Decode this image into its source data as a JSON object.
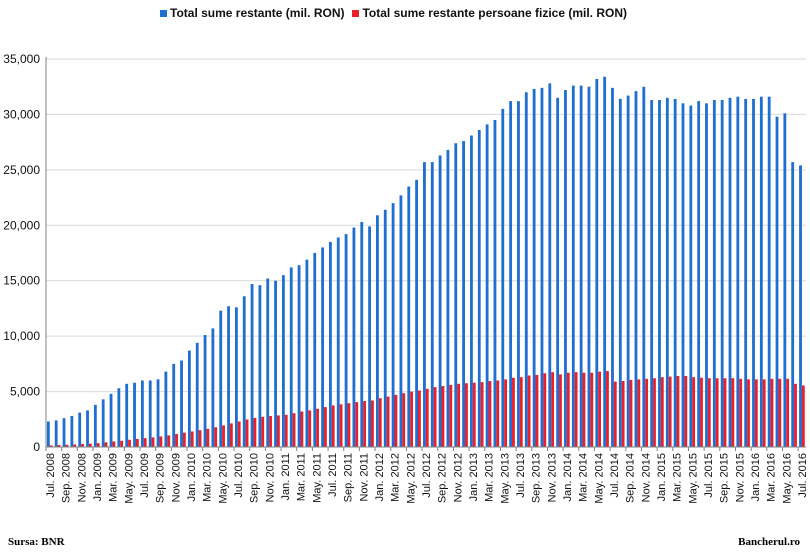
{
  "legend": {
    "series1": "Total sume restante (mil. RON)",
    "series2": "Total sume restante persoane fizice (mil. RON)"
  },
  "footer": {
    "source": "Sursa: BNR",
    "brand": "Bancherul.ro"
  },
  "colors": {
    "series1": "#1f6fd0",
    "series2": "#e8202a",
    "grid": "#d9d9d9",
    "axis": "#808080"
  },
  "chart_data": {
    "type": "bar",
    "ylim": [
      0,
      35000
    ],
    "yticks": [
      0,
      5000,
      10000,
      15000,
      20000,
      25000,
      30000,
      35000
    ],
    "ytick_labels": [
      "0",
      "5,000",
      "10,000",
      "15,000",
      "20,000",
      "25,000",
      "30,000",
      "35,000"
    ],
    "grid": true,
    "legend_position": "top",
    "categories": [
      "Jul. 2008",
      "Aug. 2008",
      "Sep. 2008",
      "Oct. 2008",
      "Nov. 2008",
      "Dec. 2008",
      "Jan. 2009",
      "Feb. 2009",
      "Mar. 2009",
      "Apr. 2009",
      "May. 2009",
      "Jun. 2009",
      "Jul. 2009",
      "Aug. 2009",
      "Sep. 2009",
      "Oct. 2009",
      "Nov. 2009",
      "Dec. 2009",
      "Jan. 2010",
      "Feb. 2010",
      "Mar. 2010",
      "Apr. 2010",
      "May. 2010",
      "Jun. 2010",
      "Jul. 2010",
      "Aug. 2010",
      "Sep. 2010",
      "Oct. 2010",
      "Nov. 2010",
      "Dec. 2010",
      "Jan. 2011",
      "Feb. 2011",
      "Mar. 2011",
      "Apr. 2011",
      "May. 2011",
      "Jun. 2011",
      "Jul. 2011",
      "Aug. 2011",
      "Sep. 2011",
      "Oct. 2011",
      "Nov. 2011",
      "Dec. 2011",
      "Jan. 2012",
      "Feb. 2012",
      "Mar. 2012",
      "Apr. 2012",
      "May. 2012",
      "Jun. 2012",
      "Jul. 2012",
      "Aug. 2012",
      "Sep. 2012",
      "Oct. 2012",
      "Nov. 2012",
      "Dec. 2012",
      "Jan. 2013",
      "Feb. 2013",
      "Mar. 2013",
      "Apr. 2013",
      "May. 2013",
      "Jun. 2013",
      "Jul. 2013",
      "Aug. 2013",
      "Sep. 2013",
      "Oct. 2013",
      "Nov. 2013",
      "Dec. 2013",
      "Jan. 2014",
      "Feb. 2014",
      "Mar. 2014",
      "Apr. 2014",
      "May. 2014",
      "Jun. 2014",
      "Jul. 2014",
      "Aug. 2014",
      "Sep. 2014",
      "Oct. 2014",
      "Nov. 2014",
      "Dec. 2014",
      "Jan. 2015",
      "Feb. 2015",
      "Mar. 2015",
      "Apr. 2015",
      "May. 2015",
      "Jun. 2015",
      "Jul. 2015",
      "Aug. 2015",
      "Sep. 2015",
      "Oct. 2015",
      "Nov. 2015",
      "Dec. 2015",
      "Jan. 2016",
      "Feb. 2016",
      "Mar. 2016",
      "Apr. 2016",
      "May. 2016",
      "Jun. 2016",
      "Jul. 2016"
    ],
    "xtick_labels": [
      "Jul. 2008",
      "Sep. 2008",
      "Nov. 2008",
      "Jan. 2009",
      "Mar. 2009",
      "May. 2009",
      "Jul. 2009",
      "Sep. 2009",
      "Nov. 2009",
      "Jan. 2010",
      "Mar. 2010",
      "May. 2010",
      "Jul. 2010",
      "Sep. 2010",
      "Nov. 2010",
      "Jan. 2011",
      "Mar. 2011",
      "May. 2011",
      "Jul. 2011",
      "Sep. 2011",
      "Nov. 2011",
      "Jan. 2012",
      "Mar. 2012",
      "May. 2012",
      "Jul. 2012",
      "Sep. 2012",
      "Nov. 2012",
      "Jan. 2013",
      "Mar. 2013",
      "May. 2013",
      "Jul. 2013",
      "Sep. 2013",
      "Nov. 2013",
      "Jan. 2014",
      "Mar. 2014",
      "May. 2014",
      "Jul. 2014",
      "Sep. 2014",
      "Nov. 2014",
      "Jan. 2015",
      "Mar. 2015",
      "May. 2015",
      "Jul. 2015",
      "Sep. 2015",
      "Nov. 2015",
      "Jan. 2016",
      "Mar. 2016",
      "May. 2016",
      "Jul. 2016"
    ],
    "series": [
      {
        "name": "Total sume restante (mil. RON)",
        "values": [
          2300,
          2400,
          2600,
          2800,
          3100,
          3300,
          3800,
          4300,
          4800,
          5300,
          5700,
          5800,
          6000,
          6000,
          6100,
          6800,
          7500,
          7800,
          8700,
          9400,
          10100,
          10700,
          12300,
          12700,
          12600,
          13600,
          14700,
          14600,
          15200,
          15000,
          15500,
          16200,
          16400,
          16900,
          17500,
          18000,
          18500,
          18900,
          19200,
          19800,
          20300,
          19900,
          20900,
          21400,
          22000,
          22700,
          23500,
          24100,
          25700,
          25700,
          26300,
          26800,
          27400,
          27600,
          28100,
          28600,
          29100,
          29500,
          30500,
          31200,
          31200,
          32000,
          32300,
          32400,
          32800,
          31500,
          32200,
          32600,
          32600,
          32500,
          33200,
          33400,
          32400,
          31400,
          31700,
          32100,
          32500,
          31300,
          31300,
          31500,
          31400,
          31000,
          30800,
          31200,
          31000,
          31300,
          31300,
          31500,
          31600,
          31400,
          31400,
          31600,
          31600,
          29800,
          30100,
          25700,
          25400
        ]
      },
      {
        "name": "Total sume restante persoane fizice (mil. RON)",
        "values": [
          150,
          180,
          200,
          230,
          270,
          300,
          350,
          420,
          500,
          560,
          650,
          730,
          800,
          870,
          950,
          1050,
          1180,
          1300,
          1400,
          1520,
          1640,
          1780,
          1950,
          2130,
          2300,
          2480,
          2620,
          2720,
          2800,
          2850,
          2900,
          3050,
          3200,
          3300,
          3450,
          3600,
          3750,
          3850,
          3950,
          4050,
          4150,
          4200,
          4400,
          4550,
          4700,
          4850,
          5000,
          5100,
          5250,
          5400,
          5500,
          5600,
          5700,
          5750,
          5800,
          5850,
          5950,
          6000,
          6100,
          6250,
          6300,
          6450,
          6500,
          6650,
          6750,
          6550,
          6700,
          6750,
          6700,
          6700,
          6800,
          6850,
          5900,
          5950,
          6050,
          6100,
          6150,
          6200,
          6300,
          6350,
          6400,
          6400,
          6300,
          6250,
          6200,
          6200,
          6200,
          6200,
          6150,
          6100,
          6100,
          6100,
          6150,
          6150,
          6150,
          5700,
          5550
        ]
      }
    ]
  }
}
